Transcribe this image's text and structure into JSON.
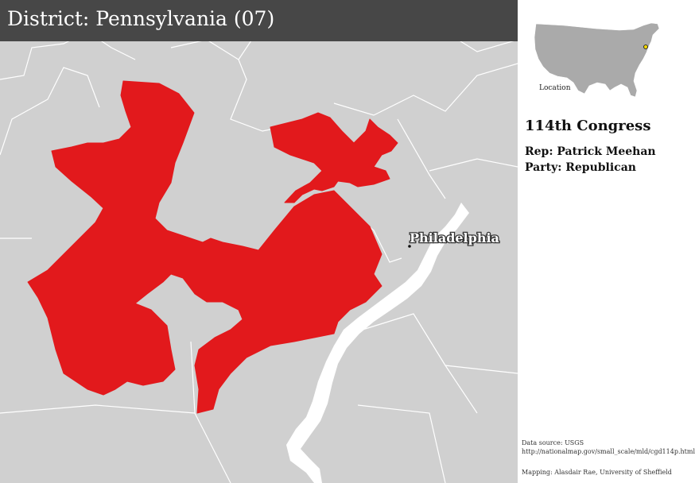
{
  "title": "District: Pennsylvania (07)",
  "map": {
    "district_color": "#e2191c",
    "land_color": "#d0d0d0",
    "border_color": "#ffffff",
    "city": {
      "name": "Philadelphia"
    }
  },
  "locator": {
    "label": "Location",
    "marker_color": "#f2d600"
  },
  "info": {
    "congress": "114th Congress",
    "rep": "Rep: Patrick Meehan",
    "party": "Party: Republican"
  },
  "credits": {
    "data_source": "Data source: USGS",
    "data_url": "http://nationalmap.gov/small_scale/mld/cgd114p.html",
    "mapping": "Mapping: Alasdair Rae, University of Sheffield"
  }
}
